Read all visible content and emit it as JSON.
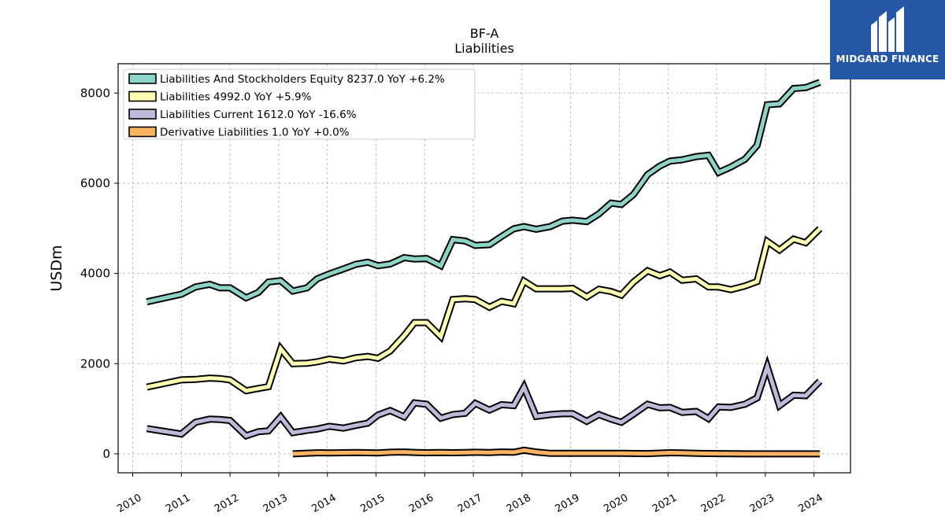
{
  "brand": {
    "name": "MIDGARD FINANCE"
  },
  "chart_data": {
    "type": "line",
    "title": "BF-A",
    "subtitle": "Liabilities",
    "ylabel": "USDm",
    "xlabel": "",
    "xlim": [
      2009.7,
      2024.75
    ],
    "ylim": [
      -420,
      8650
    ],
    "yticks": [
      0,
      2000,
      4000,
      6000,
      8000
    ],
    "xticks": [
      2010,
      2011,
      2012,
      2013,
      2014,
      2015,
      2016,
      2017,
      2018,
      2019,
      2020,
      2021,
      2022,
      2023,
      2024
    ],
    "grid": true,
    "legend_position": "top-left",
    "series": [
      {
        "name": "Liabilities And Stockholders Equity  8237.0 YoY +6.2%",
        "color": "#8dd3c7",
        "points": [
          [
            2010.29,
            3370
          ],
          [
            2011.0,
            3540
          ],
          [
            2011.29,
            3700
          ],
          [
            2011.58,
            3760
          ],
          [
            2011.79,
            3680
          ],
          [
            2012.0,
            3680
          ],
          [
            2012.33,
            3460
          ],
          [
            2012.58,
            3580
          ],
          [
            2012.79,
            3810
          ],
          [
            2013.04,
            3840
          ],
          [
            2013.29,
            3610
          ],
          [
            2013.58,
            3680
          ],
          [
            2013.79,
            3880
          ],
          [
            2014.04,
            3990
          ],
          [
            2014.33,
            4100
          ],
          [
            2014.58,
            4200
          ],
          [
            2014.83,
            4250
          ],
          [
            2015.04,
            4170
          ],
          [
            2015.29,
            4210
          ],
          [
            2015.58,
            4350
          ],
          [
            2015.79,
            4320
          ],
          [
            2016.04,
            4330
          ],
          [
            2016.33,
            4170
          ],
          [
            2016.58,
            4750
          ],
          [
            2016.83,
            4720
          ],
          [
            2017.04,
            4620
          ],
          [
            2017.33,
            4640
          ],
          [
            2017.58,
            4820
          ],
          [
            2017.83,
            4990
          ],
          [
            2018.04,
            5040
          ],
          [
            2018.29,
            4980
          ],
          [
            2018.58,
            5040
          ],
          [
            2018.83,
            5160
          ],
          [
            2019.04,
            5180
          ],
          [
            2019.33,
            5150
          ],
          [
            2019.58,
            5320
          ],
          [
            2019.83,
            5560
          ],
          [
            2020.04,
            5530
          ],
          [
            2020.29,
            5750
          ],
          [
            2020.58,
            6190
          ],
          [
            2020.83,
            6380
          ],
          [
            2021.04,
            6490
          ],
          [
            2021.29,
            6520
          ],
          [
            2021.58,
            6590
          ],
          [
            2021.83,
            6620
          ],
          [
            2022.04,
            6240
          ],
          [
            2022.29,
            6360
          ],
          [
            2022.58,
            6530
          ],
          [
            2022.83,
            6840
          ],
          [
            2023.04,
            7740
          ],
          [
            2023.29,
            7760
          ],
          [
            2023.58,
            8100
          ],
          [
            2023.83,
            8120
          ],
          [
            2024.12,
            8237
          ]
        ]
      },
      {
        "name": "Liabilities  4992.0 YoY +5.9%",
        "color": "#ffffb3",
        "points": [
          [
            2010.29,
            1480
          ],
          [
            2011.0,
            1640
          ],
          [
            2011.29,
            1650
          ],
          [
            2011.58,
            1680
          ],
          [
            2011.79,
            1670
          ],
          [
            2012.0,
            1640
          ],
          [
            2012.33,
            1400
          ],
          [
            2012.58,
            1450
          ],
          [
            2012.79,
            1490
          ],
          [
            2013.04,
            2330
          ],
          [
            2013.29,
            2000
          ],
          [
            2013.58,
            2010
          ],
          [
            2013.79,
            2040
          ],
          [
            2014.04,
            2100
          ],
          [
            2014.33,
            2060
          ],
          [
            2014.58,
            2130
          ],
          [
            2014.83,
            2160
          ],
          [
            2015.04,
            2120
          ],
          [
            2015.29,
            2280
          ],
          [
            2015.58,
            2620
          ],
          [
            2015.79,
            2910
          ],
          [
            2016.04,
            2910
          ],
          [
            2016.33,
            2600
          ],
          [
            2016.58,
            3420
          ],
          [
            2016.83,
            3440
          ],
          [
            2017.04,
            3420
          ],
          [
            2017.33,
            3250
          ],
          [
            2017.58,
            3380
          ],
          [
            2017.83,
            3330
          ],
          [
            2018.04,
            3830
          ],
          [
            2018.29,
            3660
          ],
          [
            2018.58,
            3660
          ],
          [
            2018.83,
            3660
          ],
          [
            2019.04,
            3670
          ],
          [
            2019.33,
            3480
          ],
          [
            2019.58,
            3650
          ],
          [
            2019.83,
            3600
          ],
          [
            2020.04,
            3520
          ],
          [
            2020.29,
            3810
          ],
          [
            2020.58,
            4060
          ],
          [
            2020.83,
            3950
          ],
          [
            2021.04,
            4030
          ],
          [
            2021.29,
            3850
          ],
          [
            2021.58,
            3880
          ],
          [
            2021.83,
            3700
          ],
          [
            2022.04,
            3700
          ],
          [
            2022.29,
            3640
          ],
          [
            2022.58,
            3720
          ],
          [
            2022.83,
            3820
          ],
          [
            2023.04,
            4710
          ],
          [
            2023.29,
            4520
          ],
          [
            2023.58,
            4760
          ],
          [
            2023.83,
            4680
          ],
          [
            2024.12,
            4992
          ]
        ]
      },
      {
        "name": "Liabilities Current  1612.0 YoY -16.6%",
        "color": "#bebada",
        "points": [
          [
            2010.29,
            560
          ],
          [
            2011.0,
            440
          ],
          [
            2011.29,
            700
          ],
          [
            2011.58,
            770
          ],
          [
            2011.79,
            760
          ],
          [
            2012.0,
            740
          ],
          [
            2012.33,
            400
          ],
          [
            2012.58,
            490
          ],
          [
            2012.79,
            510
          ],
          [
            2013.04,
            820
          ],
          [
            2013.29,
            470
          ],
          [
            2013.58,
            520
          ],
          [
            2013.79,
            550
          ],
          [
            2014.04,
            610
          ],
          [
            2014.33,
            570
          ],
          [
            2014.58,
            630
          ],
          [
            2014.83,
            680
          ],
          [
            2015.04,
            860
          ],
          [
            2015.29,
            960
          ],
          [
            2015.58,
            820
          ],
          [
            2015.79,
            1130
          ],
          [
            2016.04,
            1100
          ],
          [
            2016.33,
            790
          ],
          [
            2016.58,
            870
          ],
          [
            2016.83,
            900
          ],
          [
            2017.04,
            1120
          ],
          [
            2017.33,
            970
          ],
          [
            2017.58,
            1090
          ],
          [
            2017.83,
            1070
          ],
          [
            2018.04,
            1480
          ],
          [
            2018.29,
            830
          ],
          [
            2018.58,
            870
          ],
          [
            2018.83,
            890
          ],
          [
            2019.04,
            890
          ],
          [
            2019.33,
            720
          ],
          [
            2019.58,
            870
          ],
          [
            2019.83,
            770
          ],
          [
            2020.04,
            700
          ],
          [
            2020.29,
            880
          ],
          [
            2020.58,
            1100
          ],
          [
            2020.83,
            1020
          ],
          [
            2021.04,
            1030
          ],
          [
            2021.29,
            920
          ],
          [
            2021.58,
            940
          ],
          [
            2021.83,
            780
          ],
          [
            2022.04,
            1040
          ],
          [
            2022.29,
            1030
          ],
          [
            2022.58,
            1100
          ],
          [
            2022.83,
            1240
          ],
          [
            2023.04,
            1930
          ],
          [
            2023.29,
            1070
          ],
          [
            2023.58,
            1300
          ],
          [
            2023.83,
            1290
          ],
          [
            2024.12,
            1612
          ]
        ]
      },
      {
        "name": "Derivative Liabilities  1.0 YoY +0.0%",
        "color": "#fdb462",
        "points": [
          [
            2013.29,
            1
          ],
          [
            2013.58,
            15
          ],
          [
            2013.83,
            25
          ],
          [
            2014.04,
            20
          ],
          [
            2014.33,
            25
          ],
          [
            2014.58,
            30
          ],
          [
            2014.83,
            25
          ],
          [
            2015.04,
            20
          ],
          [
            2015.29,
            35
          ],
          [
            2015.58,
            40
          ],
          [
            2015.83,
            30
          ],
          [
            2016.04,
            25
          ],
          [
            2016.33,
            30
          ],
          [
            2016.58,
            25
          ],
          [
            2016.83,
            30
          ],
          [
            2017.04,
            35
          ],
          [
            2017.33,
            30
          ],
          [
            2017.58,
            40
          ],
          [
            2017.83,
            35
          ],
          [
            2018.04,
            80
          ],
          [
            2018.29,
            40
          ],
          [
            2018.58,
            10
          ],
          [
            2018.83,
            10
          ],
          [
            2019.04,
            10
          ],
          [
            2019.58,
            10
          ],
          [
            2020.04,
            10
          ],
          [
            2020.58,
            5
          ],
          [
            2021.04,
            25
          ],
          [
            2021.29,
            20
          ],
          [
            2021.58,
            10
          ],
          [
            2022.04,
            5
          ],
          [
            2022.58,
            1
          ],
          [
            2023.04,
            1
          ],
          [
            2023.58,
            1
          ],
          [
            2024.12,
            1
          ]
        ]
      }
    ]
  }
}
